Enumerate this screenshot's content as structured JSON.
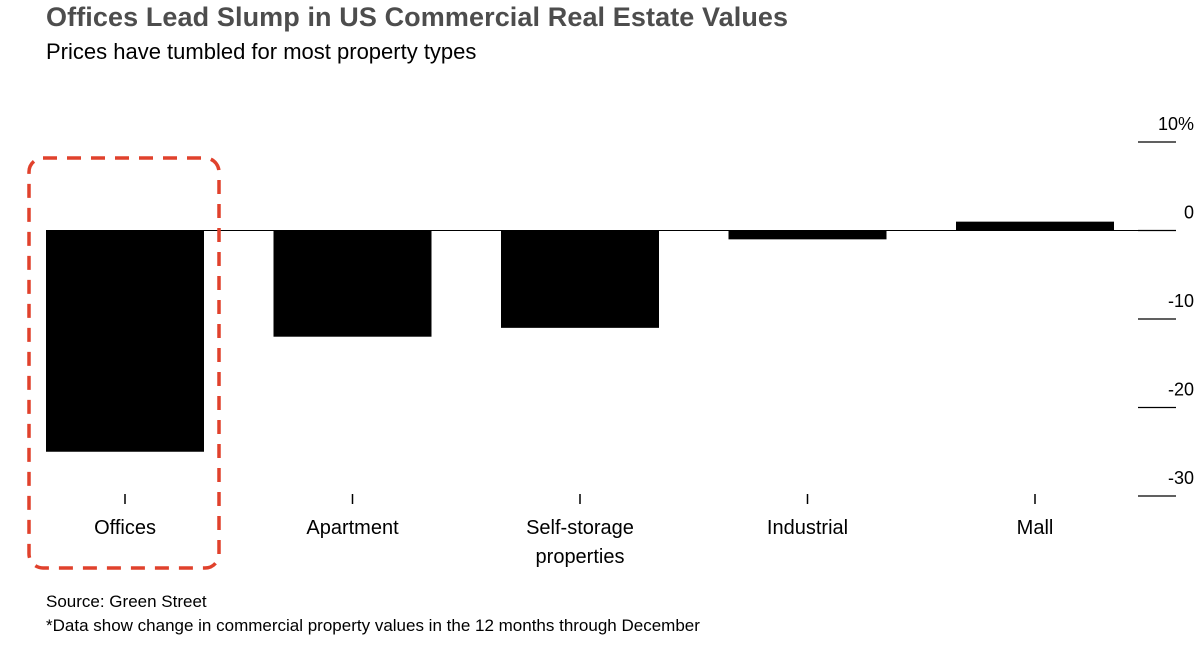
{
  "header": {
    "title": "Offices Lead Slump in US Commercial Real Estate Values",
    "subtitle": "Prices have tumbled for most property types"
  },
  "footer": {
    "source": "Source: Green Street",
    "note": "*Data show change in commercial property values in the 12 months through December"
  },
  "colors": {
    "bar": "#000000",
    "highlight_box": "#e0412c",
    "title": "#4d4d4d"
  },
  "chart_data": {
    "type": "bar",
    "title": "Offices Lead Slump in US Commercial Real Estate Values",
    "subtitle": "Prices have tumbled for most property types",
    "categories": [
      "Offices",
      "Apartment",
      "Self-storage properties",
      "Industrial",
      "Mall"
    ],
    "category_lines": [
      [
        "Offices"
      ],
      [
        "Apartment"
      ],
      [
        "Self-storage",
        "properties"
      ],
      [
        "Industrial"
      ],
      [
        "Mall"
      ]
    ],
    "values": [
      -25,
      -12,
      -11,
      -1,
      1
    ],
    "unit": "%",
    "ylim": [
      -30,
      10
    ],
    "yticks": [
      10,
      0,
      -10,
      -20,
      -30
    ],
    "ytick_labels": [
      "10%",
      "0",
      "-10",
      "-20",
      "-30"
    ],
    "y_axis_position": "right",
    "grid": false,
    "highlighted_category": "Offices",
    "highlight_style": "dashed red box"
  }
}
